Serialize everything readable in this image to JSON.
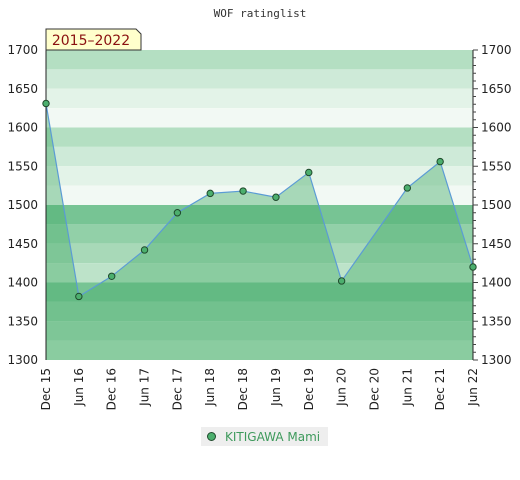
{
  "chart_data": {
    "type": "area",
    "title": "WOF ratinglist",
    "badge": "2015–2022",
    "ylim": [
      1300,
      1700
    ],
    "yticks": [
      1300,
      1350,
      1400,
      1450,
      1500,
      1550,
      1600,
      1650,
      1700
    ],
    "xticks": [
      "Dec 15",
      "Jun 16",
      "Dec 16",
      "Jun 17",
      "Dec 17",
      "Jun 18",
      "Dec 18",
      "Jun 19",
      "Dec 19",
      "Jun 20",
      "Dec 20",
      "Jun 21",
      "Dec 21",
      "Jun 22"
    ],
    "grid": true,
    "legend_position": "bottom",
    "series": [
      {
        "name": "KITIGAWA Mami",
        "color": "#4caf6e",
        "x": [
          "Dec 15",
          "Jun 16",
          "Dec 16",
          "Jun 17",
          "Dec 17",
          "Jun 18",
          "Dec 18",
          "Jun 19",
          "Dec 19",
          "Jun 20",
          "Jun 21",
          "Dec 21",
          "Jun 22"
        ],
        "values": [
          1631,
          1382,
          1408,
          1442,
          1490,
          1515,
          1518,
          1510,
          1542,
          1402,
          1522,
          1556,
          1420
        ]
      }
    ]
  },
  "colors": {
    "band_high": [
      "#b4dfc2",
      "#ceead8",
      "#e3f3e8",
      "#f2f9f4"
    ],
    "band_mid": [
      "#b4dfc2",
      "#ceead8",
      "#e3f3e8",
      "#f2f9f4"
    ],
    "band_low": [
      "#77c494",
      "#92d0a8",
      "#a8d9b8",
      "#bde3c9"
    ],
    "fill": "#4caf6e",
    "line": "#5b9bd5",
    "badge_bg": "#ffffcc"
  }
}
